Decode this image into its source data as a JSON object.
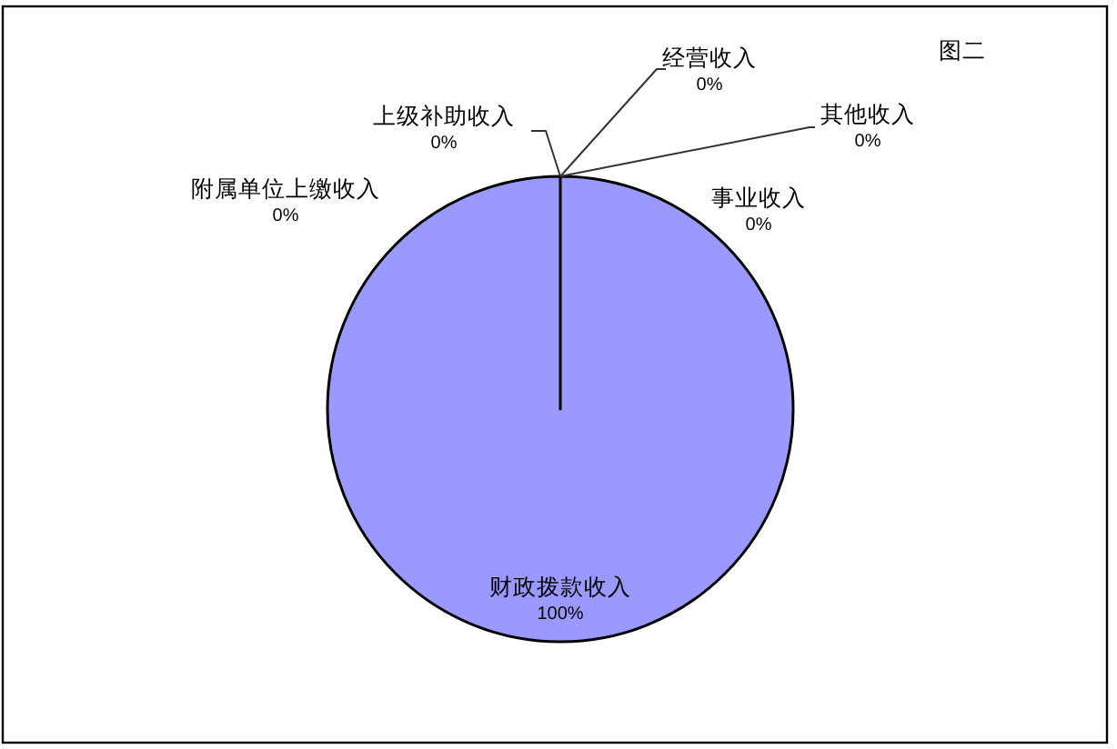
{
  "chart_data": {
    "type": "pie",
    "title": "图二",
    "categories": [
      "财政拨款收入",
      "上级补助收入",
      "事业收入",
      "经营收入",
      "附属单位上缴收入",
      "其他收入"
    ],
    "values": [
      100,
      0,
      0,
      0,
      0,
      0
    ],
    "colors": [
      "#9999ff",
      null,
      null,
      null,
      null,
      null
    ],
    "value_labels": [
      "100%",
      "0%",
      "0%",
      "0%",
      "0%",
      "0%"
    ]
  }
}
